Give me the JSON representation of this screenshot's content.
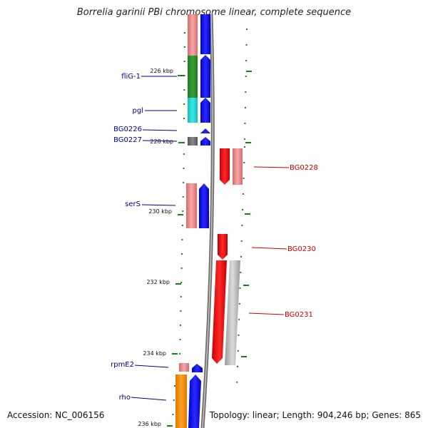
{
  "title": "Borrelia garinii PBi chromosome linear, complete sequence",
  "accession": "Accession: NC_006156",
  "summary": "Topology: linear; Length: 904,246 bp; Genes: 865",
  "colors": {
    "backbone": "#888888",
    "tick_green": "#1a7f1a",
    "label_blue": "#00008b",
    "label_red": "#cc0000",
    "forward_strand": "#0000ee",
    "reverse_strand": "#ee0000"
  },
  "ticks": [
    "226 kbp",
    "228 kbp",
    "230 kbp",
    "232 kbp",
    "234 kbp",
    "236 kbp"
  ],
  "gene_labels": {
    "fliG1": "fliG-1",
    "pgl": "pgl",
    "bg0226": "BG0226",
    "bg0227": "BG0227",
    "bg0228": "BG0228",
    "serS": "serS",
    "bg0230": "BG0230",
    "bg0231": "BG0231",
    "rpmE2": "rpmE2",
    "rho": "rho"
  }
}
